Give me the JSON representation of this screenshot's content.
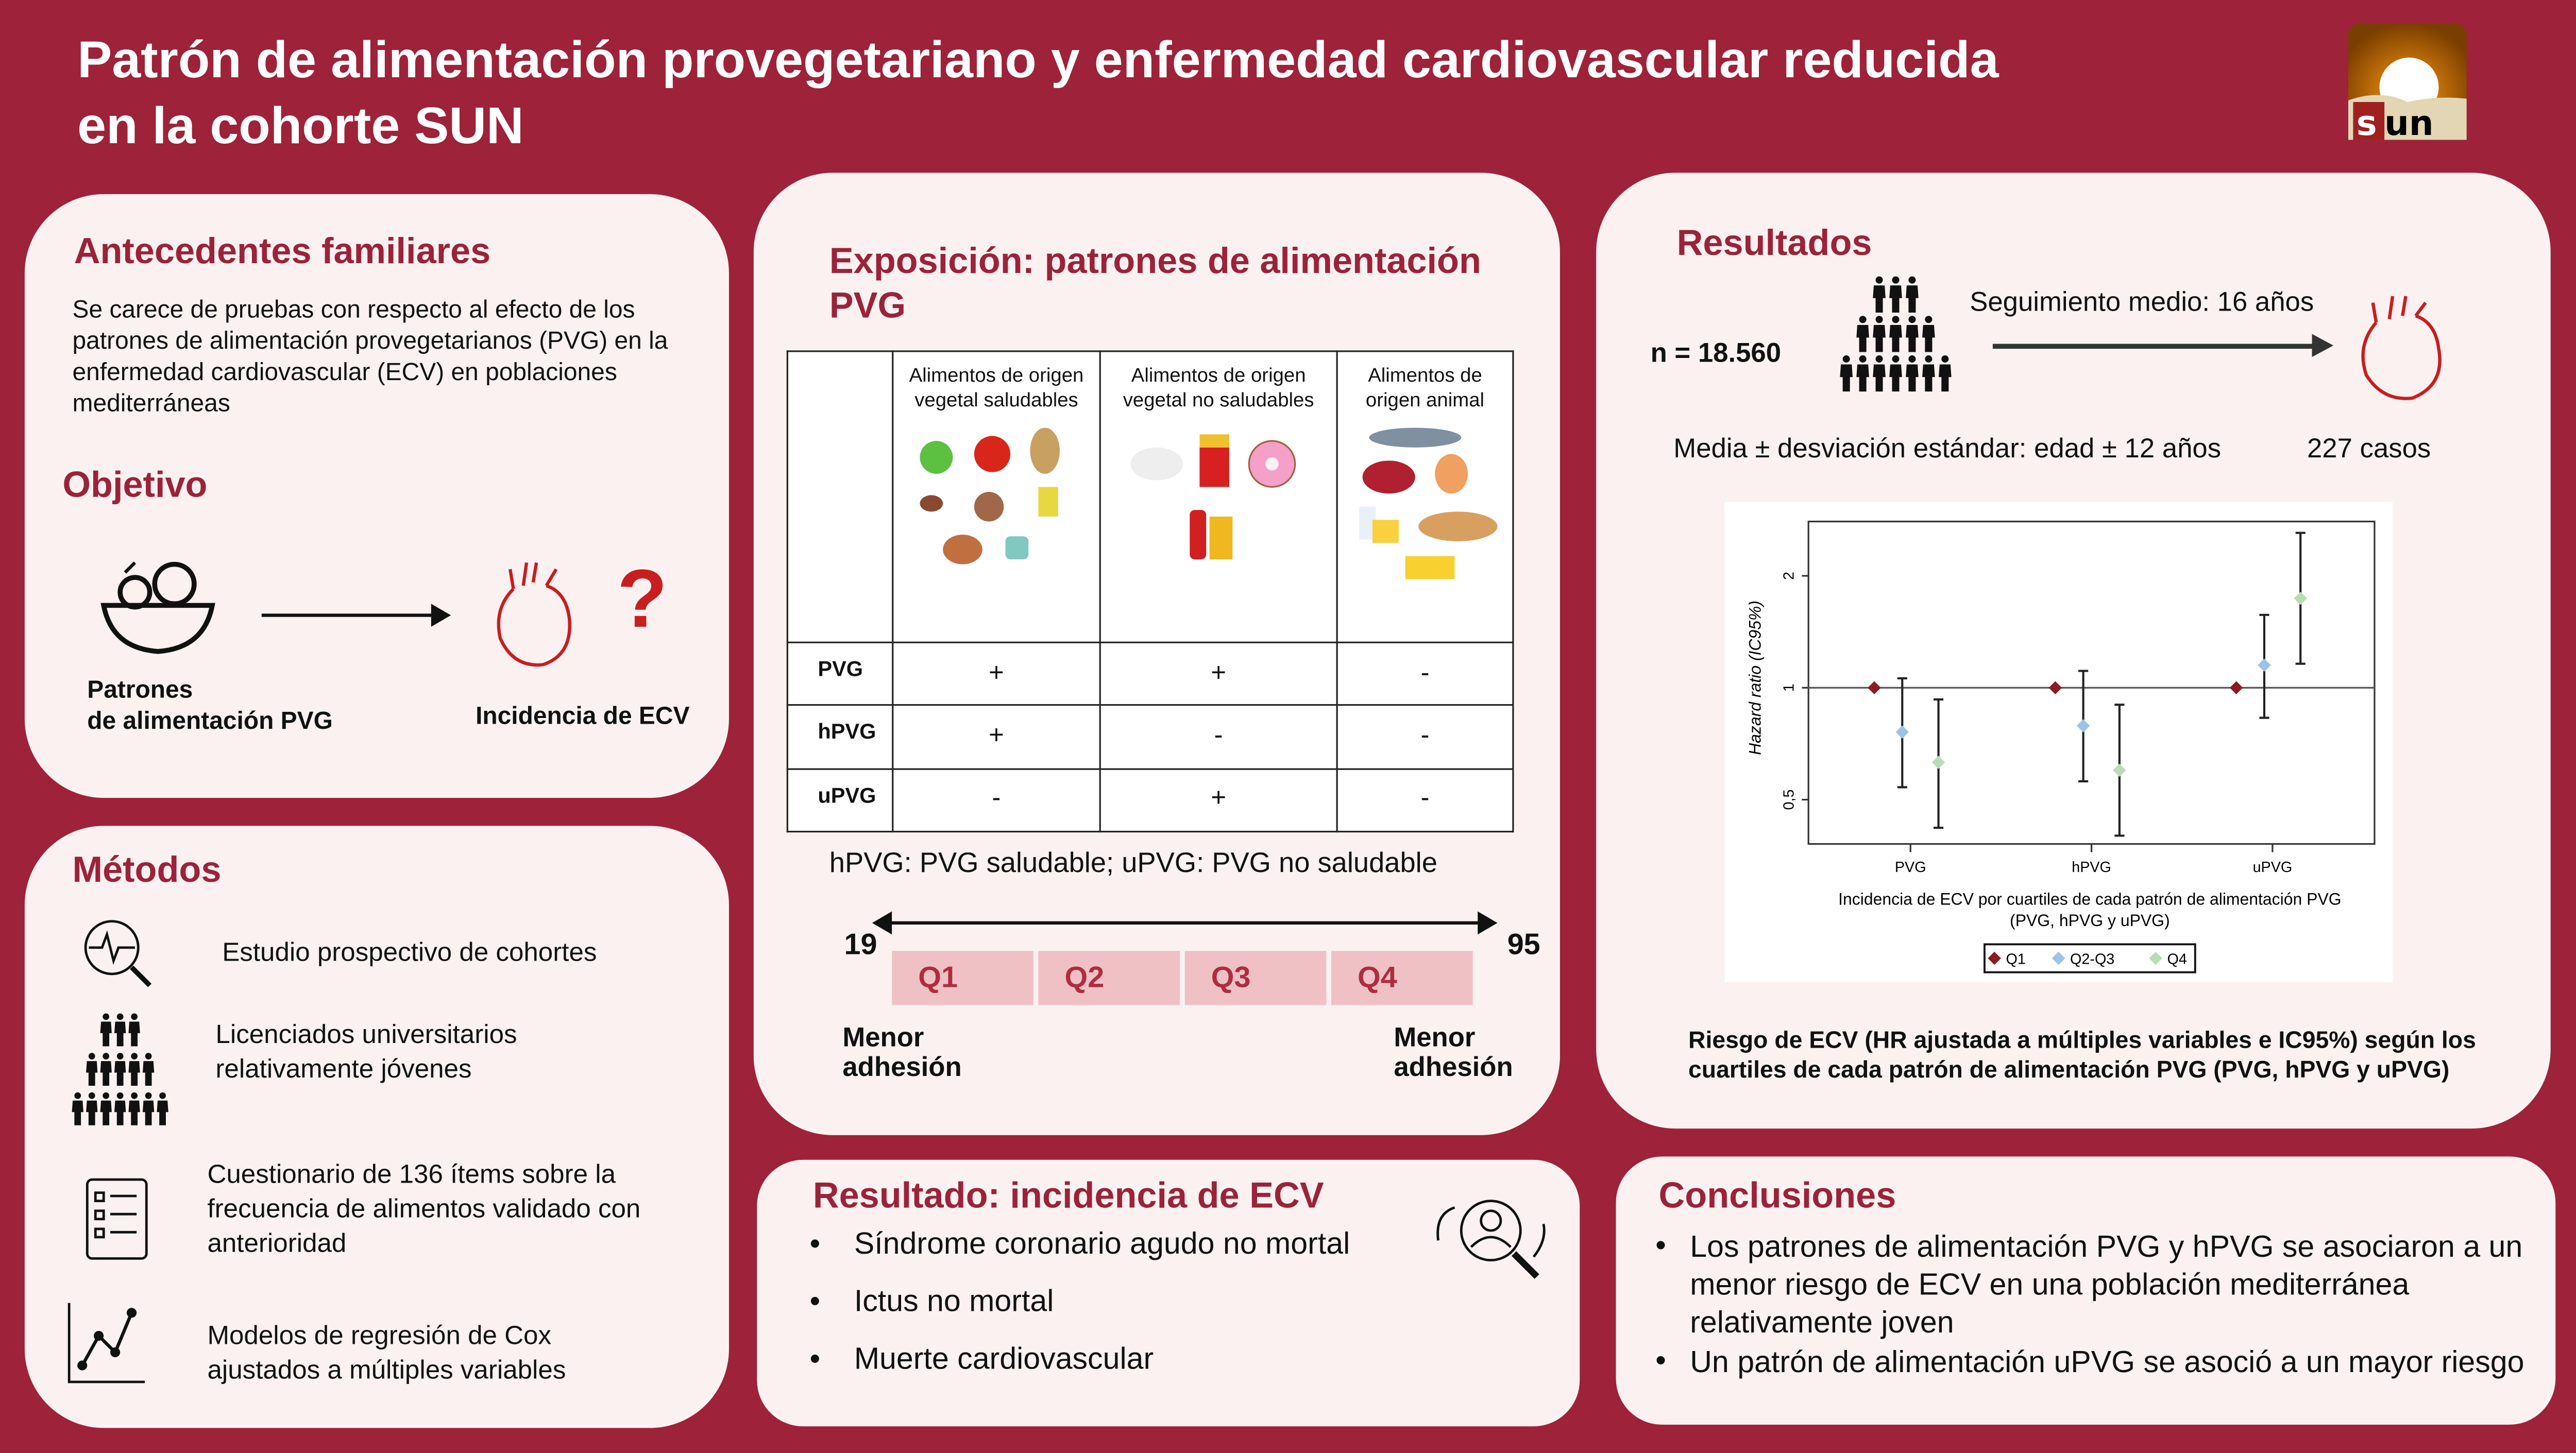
{
  "title": {
    "line1": "Patrón de alimentación provegetariano y enfermedad cardiovascular reducida",
    "line2": "en la cohorte SUN",
    "logo_text": "sun"
  },
  "antecedentes": {
    "heading": "Antecedentes familiares",
    "text": "Se carece de pruebas con respecto al efecto de los patrones de alimentación provegetarianos (PVG) en la enfermedad cardiovascular (ECV) en poblaciones mediterráneas"
  },
  "objetivo": {
    "heading": "Objetivo",
    "left_label_1": "Patrones",
    "left_label_2": "de alimentación PVG",
    "right_label": "Incidencia de ECV",
    "question": "?"
  },
  "metodos": {
    "heading": "Métodos",
    "items": [
      {
        "icon": "heart-monitor-search-icon",
        "text": "Estudio prospectivo de cohortes"
      },
      {
        "icon": "people-group-icon",
        "text": "Licenciados universitarios relativamente jóvenes"
      },
      {
        "icon": "checklist-icon",
        "text": "Cuestionario de 136 ítems sobre la frecuencia de alimentos validado con anterioridad"
      },
      {
        "icon": "line-chart-icon",
        "text": "Modelos de regresión de Cox ajustados a múltiples variables"
      }
    ]
  },
  "exposicion": {
    "heading": "Exposición: patrones de alimentación PVG",
    "columns": [
      "Alimentos de origen vegetal saludables",
      "Alimentos de origen vegetal no saludables",
      "Alimentos de origen animal"
    ],
    "rows": [
      {
        "label": "PVG",
        "values": [
          "+",
          "+",
          "-"
        ]
      },
      {
        "label": "hPVG",
        "values": [
          "+",
          "-",
          "-"
        ]
      },
      {
        "label": "uPVG",
        "values": [
          "-",
          "+",
          "-"
        ]
      }
    ],
    "footnote": "hPVG: PVG saludable; uPVG: PVG no saludable",
    "scale_min": "19",
    "scale_max": "95",
    "quartiles": [
      "Q1",
      "Q2",
      "Q3",
      "Q4"
    ],
    "low_label": "Menor adhesión",
    "high_label": "Menor adhesión"
  },
  "resultados": {
    "heading": "Resultados",
    "n": "n = 18.560",
    "followup": "Seguimiento medio: 16 años",
    "age": "Media ± desviación estándar: edad ± 12 años",
    "cases": "227 casos",
    "caption": "Riesgo de ECV (HR ajustada a múltiples variables e IC95%) según los cuartiles de cada patrón de alimentación PVG (PVG, hPVG y uPVG)"
  },
  "chart_data": {
    "type": "scatter",
    "y_scale": "log",
    "ylim": [
      0.38,
      2.8
    ],
    "reference_line": 1,
    "ylabel": "Hazard ratio (IC95%)",
    "xlabel_line1": "Incidencia de ECV por cuartiles de cada patrón de alimentación PVG",
    "xlabel_line2": "(PVG, hPVG y uPVG)",
    "yticks": [
      {
        "v": 0.5,
        "label": "0,5"
      },
      {
        "v": 1,
        "label": "1"
      },
      {
        "v": 2,
        "label": "2"
      }
    ],
    "categories": [
      "PVG",
      "hPVG",
      "uPVG"
    ],
    "legend_position": "bottom",
    "series": [
      {
        "name": "Q1",
        "color": "#8b1a22",
        "values": [
          1,
          1,
          1
        ],
        "lower": [
          null,
          null,
          null
        ],
        "upper": [
          null,
          null,
          null
        ]
      },
      {
        "name": "Q2-Q3",
        "color": "#9cc3e8",
        "values": [
          0.76,
          0.79,
          1.15
        ],
        "lower": [
          0.54,
          0.56,
          0.83
        ],
        "upper": [
          1.06,
          1.11,
          1.57
        ]
      },
      {
        "name": "Q4",
        "color": "#b8dcb4",
        "values": [
          0.63,
          0.6,
          1.74
        ],
        "lower": [
          0.42,
          0.4,
          1.16
        ],
        "upper": [
          0.93,
          0.9,
          2.61
        ]
      }
    ]
  },
  "incidencia": {
    "heading": "Resultado: incidencia de ECV",
    "items": [
      "Síndrome coronario agudo no mortal",
      "Ictus no mortal",
      "Muerte cardiovascular"
    ]
  },
  "conclusiones": {
    "heading": "Conclusiones",
    "items": [
      "Los patrones de alimentación PVG y hPVG se asociaron a un menor riesgo de ECV en una población mediterránea relativamente joven",
      "Un patrón de alimentación uPVG se asoció a un mayor riesgo"
    ]
  },
  "colors": {
    "background": "#9e2239",
    "panel": "#fbf1f1",
    "heading": "#9b2339",
    "quartile_box": "#f0c1c4"
  }
}
